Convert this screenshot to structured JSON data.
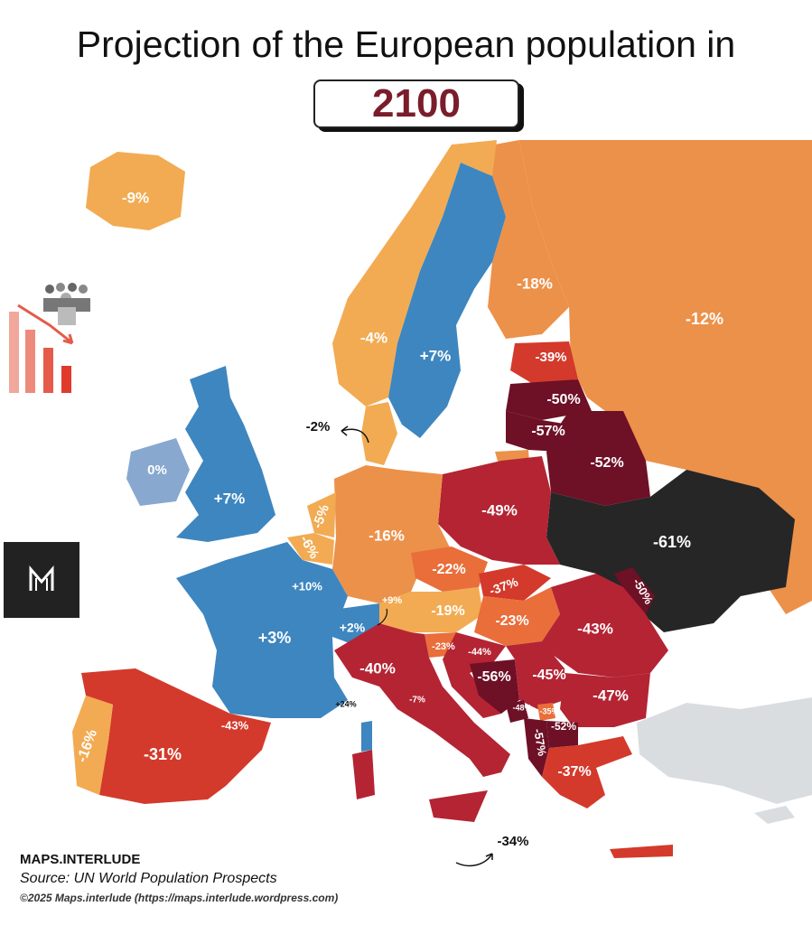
{
  "title": "Projection of the European population in",
  "year": "2100",
  "colors": {
    "light_orange": "#f2ab52",
    "orange": "#ec914a",
    "dark_orange": "#e96e3a",
    "red": "#d33a2b",
    "crimson": "#b42433",
    "dark_red": "#6e1026",
    "black": "#262626",
    "blue": "#3e86bf",
    "light_blue": "#88a8cf",
    "grey": "#d9dde0"
  },
  "countries": {
    "iceland": "-9%",
    "norway": "-4%",
    "sweden": "+7%",
    "finland": "-18%",
    "russia": "-12%",
    "estonia": "-39%",
    "latvia": "-50%",
    "lithuania": "-57%",
    "belarus": "-52%",
    "denmark": "-2%",
    "ireland": "0%",
    "uk": "+7%",
    "netherlands": "-5%",
    "belgium": "-6%",
    "germany": "-16%",
    "poland": "-49%",
    "ukraine": "-61%",
    "czechia": "-22%",
    "slovakia": "-37%",
    "moldova": "-50%",
    "luxembourg": "+10%",
    "liechtenstein": "+9%",
    "switzerland": "+2%",
    "austria": "-19%",
    "hungary": "-23%",
    "romania": "-43%",
    "france": "+3%",
    "slovenia": "-23%",
    "croatia": "-44%",
    "italy": "-40%",
    "bosnia": "-56%",
    "serbia": "-45%",
    "bulgaria": "-47%",
    "monaco": "+24%",
    "san_marino": "-7%",
    "montenegro": "-48%",
    "kosovo": "-35%",
    "north_macedonia": "-52%",
    "albania": "-57%",
    "greece": "-37%",
    "portugal": "-16%",
    "spain": "-31%",
    "andorra": "-43%",
    "malta": "-34%"
  },
  "icons": {
    "decline": "population-decline-icon",
    "logo": "m-logo-icon"
  },
  "footer": {
    "brand": "MAPS.INTERLUDE",
    "source": "Source: UN World Population Prospects",
    "copyright": "©2025 Maps.interlude (https://maps.interlude.wordpress.com)"
  }
}
